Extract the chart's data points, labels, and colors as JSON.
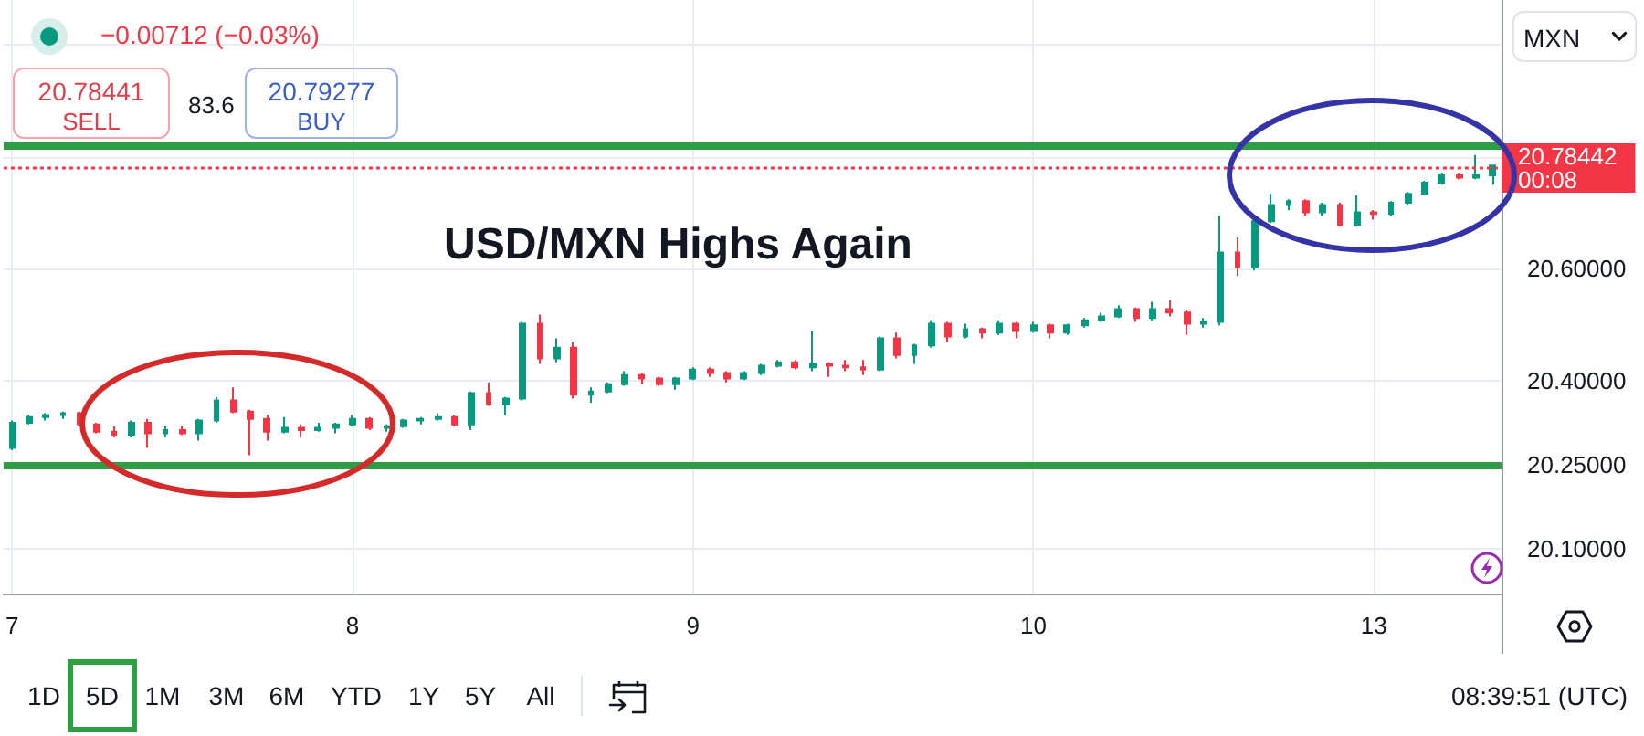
{
  "chart_data": {
    "type": "candlestick",
    "title": "USD/MXN Highs Again",
    "categories": [
      "7",
      null,
      null,
      null,
      null,
      null,
      null,
      null,
      null,
      null,
      null,
      null,
      null,
      null,
      null,
      null,
      null,
      null,
      null,
      null,
      "8",
      null,
      null,
      null,
      null,
      null,
      null,
      null,
      null,
      null,
      null,
      null,
      null,
      null,
      null,
      null,
      null,
      null,
      null,
      null,
      "9",
      null,
      null,
      null,
      null,
      null,
      null,
      null,
      null,
      null,
      null,
      null,
      null,
      null,
      null,
      null,
      null,
      null,
      null,
      null,
      "10",
      null,
      null,
      null,
      null,
      null,
      null,
      null,
      null,
      null,
      null,
      null,
      null,
      null,
      null,
      null,
      null,
      null,
      null,
      null,
      "13",
      null,
      null,
      null,
      null,
      null,
      null,
      null
    ],
    "ohlc": [
      [
        20.28,
        20.329,
        20.276,
        20.325
      ],
      [
        20.325,
        20.339,
        20.322,
        20.335
      ],
      [
        20.335,
        20.342,
        20.329,
        20.339
      ],
      [
        20.339,
        20.345,
        20.332,
        20.342
      ],
      [
        20.342,
        20.345,
        20.319,
        20.322
      ],
      [
        20.322,
        20.325,
        20.306,
        20.309
      ],
      [
        20.309,
        20.319,
        20.299,
        20.303
      ],
      [
        20.303,
        20.329,
        20.299,
        20.325
      ],
      [
        20.325,
        20.332,
        20.28,
        20.306
      ],
      [
        20.306,
        20.319,
        20.299,
        20.312
      ],
      [
        20.312,
        20.319,
        20.303,
        20.306
      ],
      [
        20.306,
        20.332,
        20.293,
        20.329
      ],
      [
        20.329,
        20.371,
        20.325,
        20.365
      ],
      [
        20.365,
        20.388,
        20.342,
        20.345
      ],
      [
        20.345,
        20.348,
        20.267,
        20.332
      ],
      [
        20.332,
        20.339,
        20.293,
        20.309
      ],
      [
        20.309,
        20.335,
        20.306,
        20.316
      ],
      [
        20.316,
        20.322,
        20.299,
        20.312
      ],
      [
        20.312,
        20.325,
        20.309,
        20.316
      ],
      [
        20.316,
        20.325,
        20.306,
        20.322
      ],
      [
        20.322,
        20.339,
        20.319,
        20.332
      ],
      [
        20.332,
        20.335,
        20.312,
        20.316
      ],
      [
        20.316,
        20.322,
        20.309,
        20.319
      ],
      [
        20.319,
        20.332,
        20.316,
        20.329
      ],
      [
        20.329,
        20.335,
        20.322,
        20.332
      ],
      [
        20.332,
        20.342,
        20.329,
        20.335
      ],
      [
        20.335,
        20.339,
        20.319,
        20.322
      ],
      [
        20.322,
        20.381,
        20.312,
        20.378
      ],
      [
        20.378,
        20.397,
        20.355,
        20.358
      ],
      [
        20.358,
        20.371,
        20.339,
        20.368
      ],
      [
        20.368,
        20.505,
        20.365,
        20.502
      ],
      [
        20.502,
        20.518,
        20.43,
        20.44
      ],
      [
        20.44,
        20.476,
        20.433,
        20.459
      ],
      [
        20.459,
        20.469,
        20.368,
        20.375
      ],
      [
        20.375,
        20.388,
        20.361,
        20.381
      ],
      [
        20.381,
        20.397,
        20.378,
        20.394
      ],
      [
        20.394,
        20.417,
        20.391,
        20.41
      ],
      [
        20.41,
        20.414,
        20.394,
        20.404
      ],
      [
        20.404,
        20.407,
        20.391,
        20.394
      ],
      [
        20.394,
        20.407,
        20.384,
        20.404
      ],
      [
        20.404,
        20.424,
        20.401,
        20.42
      ],
      [
        20.42,
        20.424,
        20.407,
        20.414
      ],
      [
        20.414,
        20.417,
        20.397,
        20.404
      ],
      [
        20.404,
        20.417,
        20.401,
        20.414
      ],
      [
        20.414,
        20.43,
        20.41,
        20.427
      ],
      [
        20.427,
        20.437,
        20.424,
        20.433
      ],
      [
        20.433,
        20.437,
        20.42,
        20.424
      ],
      [
        20.424,
        20.489,
        20.417,
        20.43
      ],
      [
        20.43,
        20.433,
        20.407,
        20.427
      ],
      [
        20.427,
        20.437,
        20.417,
        20.424
      ],
      [
        20.424,
        20.437,
        20.41,
        20.42
      ],
      [
        20.42,
        20.479,
        20.417,
        20.476
      ],
      [
        20.476,
        20.486,
        20.44,
        20.446
      ],
      [
        20.446,
        20.466,
        20.43,
        20.463
      ],
      [
        20.463,
        20.508,
        20.459,
        20.502
      ],
      [
        20.502,
        20.505,
        20.469,
        20.479
      ],
      [
        20.479,
        20.502,
        20.476,
        20.492
      ],
      [
        20.492,
        20.495,
        20.476,
        20.486
      ],
      [
        20.486,
        20.508,
        20.482,
        20.502
      ],
      [
        20.502,
        20.505,
        20.476,
        20.489
      ],
      [
        20.489,
        20.505,
        20.486,
        20.499
      ],
      [
        20.499,
        20.502,
        20.476,
        20.486
      ],
      [
        20.486,
        20.502,
        20.482,
        20.499
      ],
      [
        20.499,
        20.512,
        20.495,
        20.508
      ],
      [
        20.508,
        20.522,
        20.505,
        20.515
      ],
      [
        20.515,
        20.535,
        20.512,
        20.528
      ],
      [
        20.528,
        20.531,
        20.505,
        20.512
      ],
      [
        20.512,
        20.541,
        20.508,
        20.528
      ],
      [
        20.528,
        20.544,
        20.515,
        20.522
      ],
      [
        20.522,
        20.525,
        20.482,
        20.502
      ],
      [
        20.502,
        20.512,
        20.495,
        20.505
      ],
      [
        20.505,
        20.695,
        20.499,
        20.629
      ],
      [
        20.629,
        20.656,
        20.587,
        20.603
      ],
      [
        20.603,
        20.692,
        20.597,
        20.685
      ],
      [
        20.685,
        20.734,
        20.682,
        20.714
      ],
      [
        20.714,
        20.724,
        20.705,
        20.721
      ],
      [
        20.721,
        20.724,
        20.695,
        20.701
      ],
      [
        20.701,
        20.718,
        20.695,
        20.714
      ],
      [
        20.714,
        20.718,
        20.675,
        20.678
      ],
      [
        20.678,
        20.731,
        20.675,
        20.701
      ],
      [
        20.701,
        20.705,
        20.688,
        20.698
      ],
      [
        20.698,
        20.721,
        20.695,
        20.718
      ],
      [
        20.718,
        20.737,
        20.714,
        20.734
      ],
      [
        20.734,
        20.757,
        20.731,
        20.754
      ],
      [
        20.754,
        20.77,
        20.75,
        20.767
      ],
      [
        20.767,
        20.77,
        20.76,
        20.763
      ],
      [
        20.763,
        20.803,
        20.76,
        20.767
      ],
      [
        20.767,
        20.786,
        20.75,
        20.78442
      ]
    ],
    "ylim": [
      20.02,
      21.08
    ],
    "yticks": [
      {
        "value": 20.1,
        "label": "20.10000"
      },
      {
        "value": 20.25,
        "label": "20.25000"
      },
      {
        "value": 20.4,
        "label": "20.40000"
      },
      {
        "value": 20.6,
        "label": "20.60000"
      },
      {
        "value": 20.8,
        "label": null
      },
      {
        "value": 21.0,
        "label": null
      }
    ],
    "grid": true,
    "ref_lines": [
      {
        "axis": "y",
        "value": 20.82,
        "color": "#2e9e44"
      },
      {
        "axis": "y",
        "value": 20.25,
        "color": "#2e9e44"
      },
      {
        "axis": "y",
        "value": 20.78442,
        "label": "20.78442\n00:08",
        "color": "#f23645",
        "line_style": "dotted"
      }
    ],
    "annotations": [
      "−0.00712 (−0.03%)",
      "20.78441",
      "SELL",
      "83.6",
      "20.79277",
      "BUY",
      "MXN",
      "1D",
      "5D",
      "1M",
      "3M",
      "6M",
      "YTD",
      "1Y",
      "5Y",
      "All",
      "08:39:51 (UTC)"
    ]
  }
}
